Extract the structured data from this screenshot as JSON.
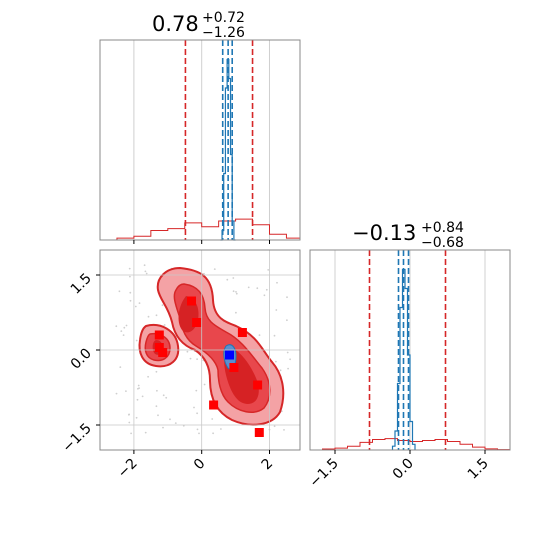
{
  "chart_data": {
    "type": "corner",
    "params": [
      {
        "title": {
          "main": "0.78",
          "sup": "+0.72",
          "sub": "−1.26"
        },
        "median": 0.78,
        "interval_broad": [
          -0.48,
          1.5
        ],
        "interval_narrow": [
          0.62,
          0.9
        ],
        "xlim": [
          -3.0,
          2.9
        ]
      },
      {
        "title": {
          "main": "−0.13",
          "sup": "+0.84",
          "sub": "−0.68"
        },
        "median": -0.13,
        "interval_broad": [
          -0.81,
          0.71
        ],
        "interval_narrow": [
          -0.23,
          -0.03
        ],
        "xlim": [
          -2.0,
          2.0
        ]
      }
    ],
    "panel_top_left": {
      "xlim": [
        -3.0,
        2.9
      ],
      "grid": true,
      "series": [
        {
          "name": "",
          "color": "#d62728",
          "bins": [
            -3.0,
            -2.5,
            -2.0,
            -1.5,
            -1.0,
            -0.5,
            0.0,
            0.5,
            1.0,
            1.5,
            2.0,
            2.5,
            2.9
          ],
          "counts": [
            0,
            0.01,
            0.02,
            0.05,
            0.06,
            0.09,
            0.07,
            0.1,
            0.11,
            0.08,
            0.03,
            0.01
          ]
        },
        {
          "name": "",
          "color": "#1f77b4",
          "bins": [
            0.55,
            0.6,
            0.65,
            0.7,
            0.75,
            0.8,
            0.85,
            0.9,
            0.95,
            1.0
          ],
          "counts": [
            0,
            0.05,
            0.35,
            0.8,
            0.95,
            0.85,
            0.45,
            0.1,
            0
          ]
        }
      ]
    },
    "panel_bottom_right": {
      "xlim": [
        -2.0,
        2.0
      ],
      "ticks": [
        -1.5,
        0.0,
        1.5
      ],
      "tick_labels": [
        "−1.5",
        "0.0",
        "1.5"
      ],
      "grid": true,
      "series": [
        {
          "name": "",
          "color": "#d62728",
          "bins": [
            -2.0,
            -1.75,
            -1.5,
            -1.25,
            -1.0,
            -0.75,
            -0.5,
            -0.25,
            0.0,
            0.25,
            0.5,
            0.75,
            1.0,
            1.25,
            1.5,
            1.75,
            2.0
          ],
          "counts": [
            0,
            0.005,
            0.01,
            0.02,
            0.04,
            0.055,
            0.06,
            0.05,
            0.045,
            0.05,
            0.055,
            0.045,
            0.03,
            0.015,
            0.006,
            0.002
          ]
        },
        {
          "name": "",
          "color": "#1f77b4",
          "bins": [
            -0.35,
            -0.3,
            -0.25,
            -0.2,
            -0.15,
            -0.1,
            -0.05,
            0.0,
            0.05,
            0.1
          ],
          "counts": [
            0.02,
            0.1,
            0.35,
            0.75,
            0.95,
            0.85,
            0.5,
            0.15,
            0.03
          ]
        }
      ]
    },
    "panel_bottom_left": {
      "xlim": [
        -3.0,
        2.9
      ],
      "ylim": [
        -2.0,
        2.0
      ],
      "xticks": [
        -2,
        0,
        2
      ],
      "xtick_labels": [
        "−2",
        "0",
        "2"
      ],
      "yticks": [
        -1.5,
        0.0,
        1.5
      ],
      "ytick_labels": [
        "−1.5",
        "0.0",
        "1.5"
      ],
      "grid": true,
      "contour_colors": {
        "light": "#f4a2a5",
        "mid": "#e8474c",
        "dark": "#d62224",
        "line": "#d62728",
        "blue": "#1f77b4"
      },
      "red_points": [
        {
          "x": -1.25,
          "y": 0.3
        },
        {
          "x": -1.25,
          "y": 0.05
        },
        {
          "x": -1.15,
          "y": -0.05
        },
        {
          "x": -0.3,
          "y": 0.98
        },
        {
          "x": -0.15,
          "y": 0.55
        },
        {
          "x": 0.95,
          "y": -0.35
        },
        {
          "x": 1.2,
          "y": 0.35
        },
        {
          "x": 1.65,
          "y": -0.7
        },
        {
          "x": 0.35,
          "y": -1.1
        },
        {
          "x": 1.7,
          "y": -1.65
        }
      ],
      "blue_point": {
        "x": 0.82,
        "y": -0.1
      }
    }
  }
}
